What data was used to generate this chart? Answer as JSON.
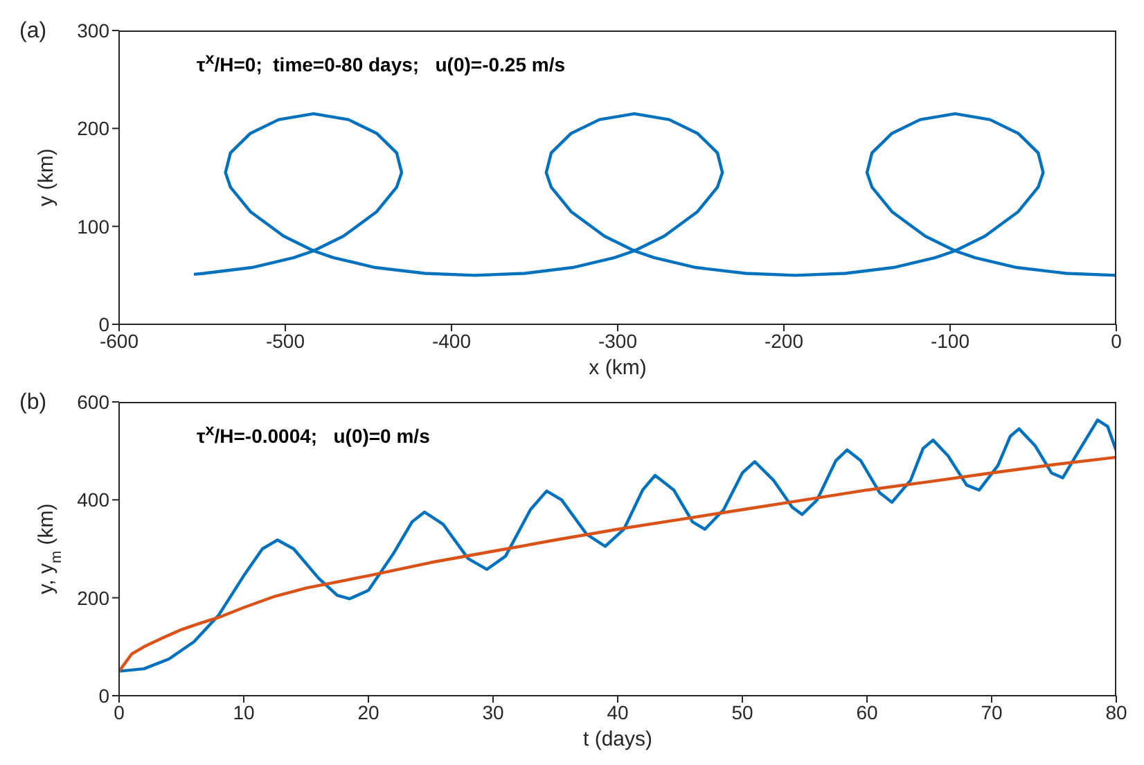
{
  "chart_data": [
    {
      "type": "line",
      "title": "(a)",
      "annotations": [
        "τ$^{x}$/H=0;  time=0-80 days;   u(0)=-0.25 m/s"
      ],
      "xlabel": "x (km)",
      "ylabel": "y (km)",
      "xlim": [
        -600,
        0
      ],
      "ylim": [
        0,
        300
      ],
      "xticks": [
        -600,
        -500,
        -400,
        -300,
        -200,
        -100,
        0
      ],
      "yticks": [
        0,
        100,
        200,
        300
      ],
      "series": [
        {
          "color": "#0072bd",
          "x": [
            0,
            -30,
            -60,
            -85,
            -97,
            -115,
            -135,
            -147,
            -150,
            -147,
            -135,
            -118,
            -97,
            -76,
            -59,
            -47,
            -44,
            -47,
            -59,
            -79,
            -97,
            -109,
            -134,
            -163,
            -193,
            -223,
            -253,
            -278,
            -290,
            -308,
            -328,
            -340,
            -343,
            -340,
            -328,
            -311,
            -290,
            -269,
            -252,
            -240,
            -237,
            -240,
            -252,
            -272,
            -290,
            -302,
            -327,
            -356,
            -386,
            -416,
            -446,
            -471,
            -483,
            -501,
            -521,
            -533,
            -536,
            -533,
            -521,
            -504,
            -483,
            -462,
            -445,
            -433,
            -430,
            -433,
            -445,
            -465,
            -483,
            -495,
            -520,
            -549,
            -555
          ],
          "values": [
            50,
            52,
            58,
            68,
            75,
            90,
            115,
            140,
            155,
            175,
            195,
            209,
            215,
            209,
            195,
            175,
            155,
            140,
            115,
            90,
            75,
            68,
            58,
            52,
            50,
            52,
            58,
            68,
            75,
            90,
            115,
            140,
            155,
            175,
            195,
            209,
            215,
            209,
            195,
            175,
            155,
            140,
            115,
            90,
            75,
            68,
            58,
            52,
            50,
            52,
            58,
            68,
            75,
            90,
            115,
            140,
            155,
            175,
            195,
            209,
            215,
            209,
            195,
            175,
            155,
            140,
            115,
            90,
            75,
            68,
            58,
            52,
            51
          ]
        }
      ]
    },
    {
      "type": "line",
      "title": "(b)",
      "annotations": [
        "τ$^{x}$/H=-0.0004;   u(0)=0 m/s"
      ],
      "xlabel": "t (days)",
      "ylabel": "y, y$_{m}$ (km)",
      "xlim": [
        0,
        80
      ],
      "ylim": [
        0,
        600
      ],
      "xticks": [
        0,
        10,
        20,
        30,
        40,
        50,
        60,
        70,
        80
      ],
      "yticks": [
        0,
        200,
        400,
        600
      ],
      "series": [
        {
          "color": "#0072bd",
          "x": [
            0,
            2,
            4,
            6,
            8,
            10,
            11.5,
            12.7,
            14,
            16,
            17.5,
            18.5,
            20,
            22,
            23.5,
            24.5,
            26,
            28,
            29.5,
            31,
            33,
            34.3,
            35.5,
            37.5,
            39,
            40.5,
            42,
            43,
            44.5,
            46,
            47,
            48.5,
            50,
            51,
            52.5,
            54,
            54.8,
            56,
            57.5,
            58.4,
            59.5,
            61,
            62,
            63.5,
            64.5,
            65.3,
            66.5,
            68,
            69,
            70.5,
            71.5,
            72.2,
            73.5,
            74.8,
            75.7,
            77,
            78.5,
            79.3,
            80
          ],
          "values": [
            50,
            55,
            75,
            110,
            165,
            245,
            300,
            318,
            300,
            240,
            205,
            198,
            215,
            290,
            355,
            375,
            350,
            280,
            258,
            285,
            380,
            418,
            400,
            330,
            305,
            340,
            420,
            450,
            420,
            355,
            340,
            380,
            455,
            478,
            440,
            385,
            370,
            400,
            480,
            502,
            480,
            415,
            395,
            440,
            505,
            522,
            490,
            430,
            420,
            470,
            530,
            545,
            510,
            455,
            445,
            500,
            563,
            550,
            500
          ]
        },
        {
          "color": "#d95319",
          "x": [
            0,
            1,
            2,
            3.5,
            5,
            6.5,
            8,
            10,
            12.5,
            15,
            20,
            25,
            30,
            35,
            40,
            45,
            50,
            55,
            60,
            65,
            70,
            75,
            80
          ],
          "values": [
            50,
            85,
            100,
            118,
            135,
            148,
            160,
            180,
            203,
            220,
            245,
            272,
            295,
            318,
            340,
            360,
            380,
            400,
            420,
            437,
            455,
            472,
            487
          ]
        }
      ]
    }
  ]
}
